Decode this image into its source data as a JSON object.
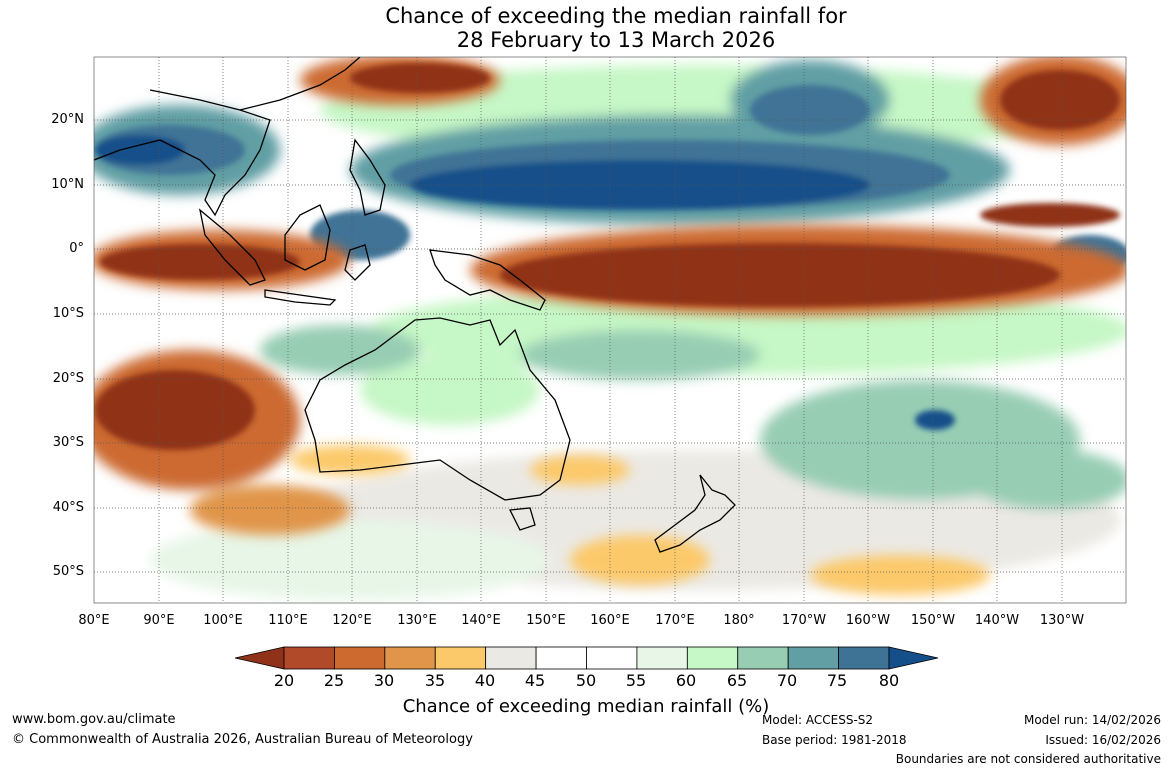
{
  "title": {
    "line1": "Chance of exceeding the median rainfall for",
    "line2": "28 February to 13 March 2026"
  },
  "map": {
    "lat_labels": [
      "20°N",
      "10°N",
      "0°",
      "10°S",
      "20°S",
      "30°S",
      "40°S",
      "50°S"
    ],
    "lon_labels": [
      "80°E",
      "90°E",
      "100°E",
      "110°E",
      "120°E",
      "130°E",
      "140°E",
      "150°E",
      "160°E",
      "170°E",
      "180°",
      "170°W",
      "160°W",
      "150°W",
      "140°W",
      "130°W"
    ]
  },
  "colorbar": {
    "ticks": [
      "20",
      "25",
      "30",
      "35",
      "40",
      "45",
      "50",
      "55",
      "60",
      "65",
      "70",
      "75",
      "80"
    ],
    "colors": [
      "#8f3219",
      "#b04a28",
      "#cc6a30",
      "#e0954a",
      "#fcc96a",
      "#ebe9e4",
      "#ffffff",
      "#ffffff",
      "#e7f6e7",
      "#c6f7c6",
      "#97cdb3",
      "#619fa4",
      "#3f7396",
      "#154f8a"
    ],
    "label": "Chance of exceeding median rainfall (%)"
  },
  "footer": {
    "website": "www.bom.gov.au/climate",
    "copyright": "© Commonwealth of Australia 2026, Australian Bureau of Meteorology",
    "model": "Model: ACCESS-S2",
    "base_period": "Base period: 1981-2018",
    "model_run": "Model run: 14/02/2026",
    "issued": "Issued: 16/02/2026",
    "disclaimer": "Boundaries are not considered authoritative"
  }
}
